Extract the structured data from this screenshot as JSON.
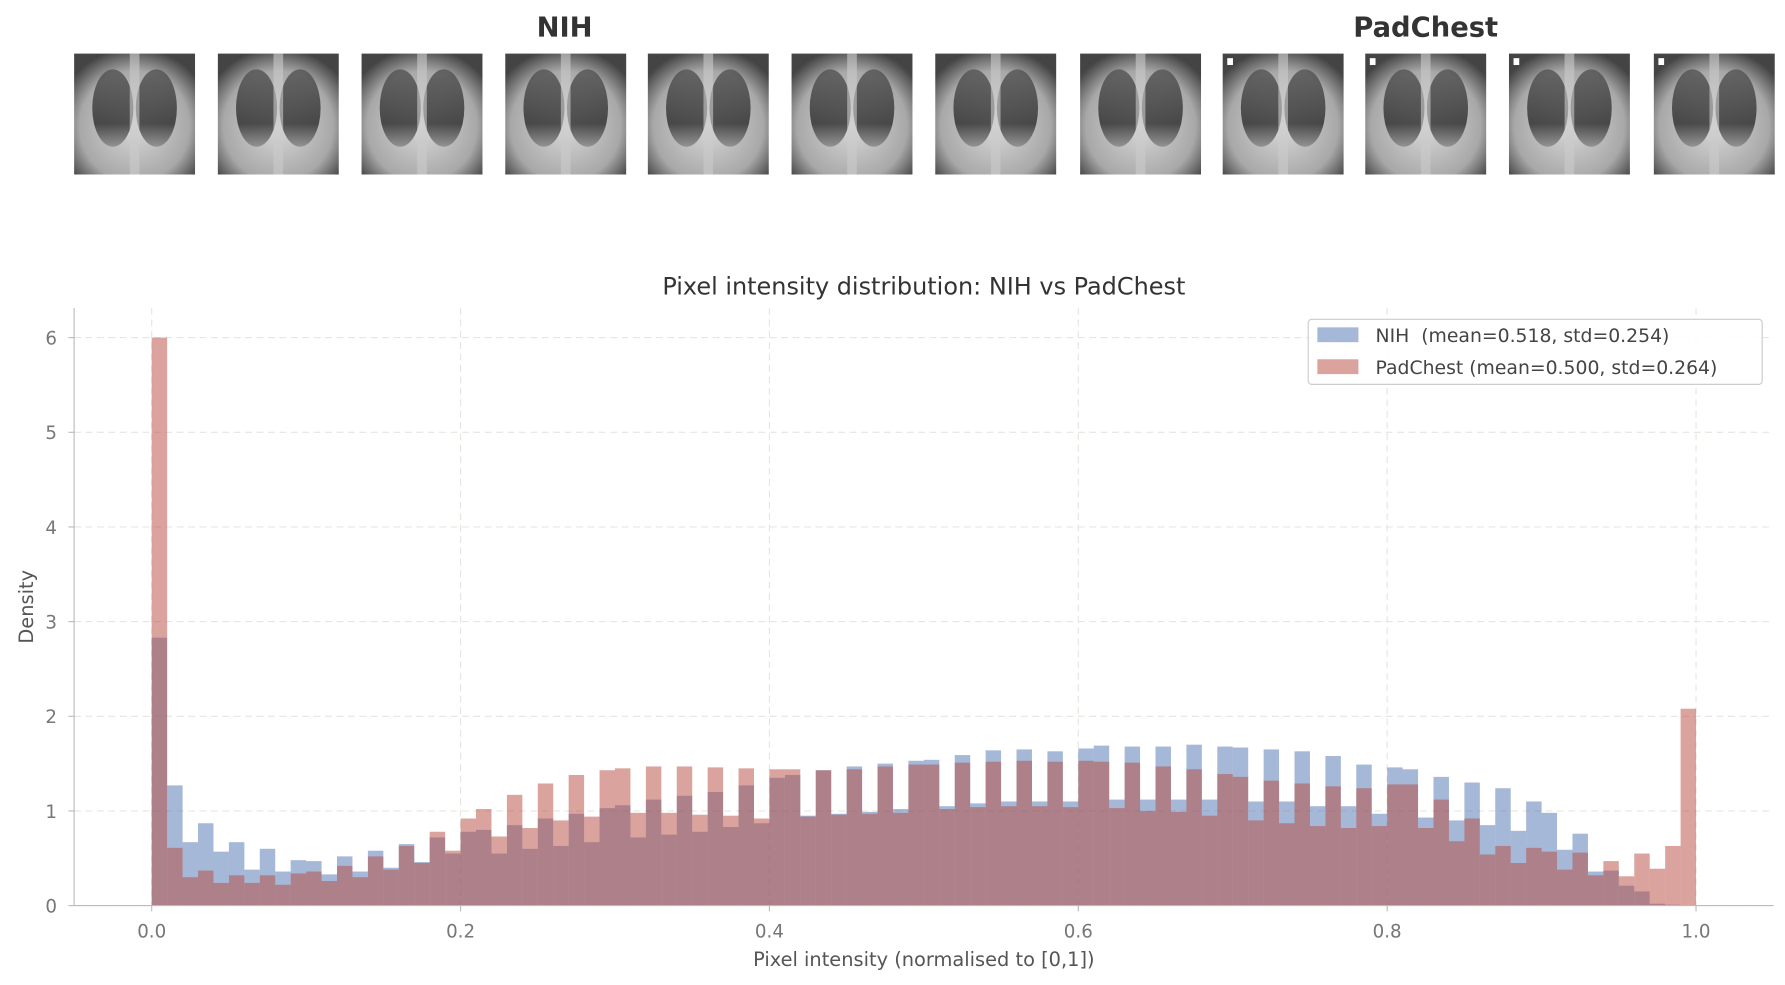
{
  "panels": {
    "left_title": "NIH",
    "right_title": "PadChest",
    "nih_thumbnails": 8,
    "padchest_thumbnails": 4
  },
  "chart_data": {
    "type": "histogram",
    "title": "Pixel intensity distribution: NIH vs PadChest",
    "xlabel": "Pixel intensity (normalised to [0,1])",
    "ylabel": "Density",
    "xlim": [
      -0.05,
      1.05
    ],
    "ylim": [
      0,
      6.3
    ],
    "xticks": [
      "0.0",
      "0.2",
      "0.4",
      "0.6",
      "0.8",
      "1.0"
    ],
    "yticks": [
      "0",
      "1",
      "2",
      "3",
      "4",
      "5",
      "6"
    ],
    "grid": true,
    "legend_position": "top-right",
    "bin_start": 0.0,
    "bin_width": 0.01,
    "series": [
      {
        "name": "NIH  (mean=0.518, std=0.254)",
        "color": "#4c72b0",
        "values": [
          2.83,
          1.27,
          0.67,
          0.87,
          0.57,
          0.67,
          0.38,
          0.6,
          0.36,
          0.48,
          0.47,
          0.33,
          0.52,
          0.36,
          0.58,
          0.4,
          0.65,
          0.46,
          0.72,
          0.55,
          0.78,
          0.8,
          0.55,
          0.85,
          0.6,
          0.92,
          0.63,
          0.97,
          0.67,
          1.03,
          1.06,
          0.72,
          1.12,
          0.75,
          1.16,
          0.78,
          1.2,
          0.83,
          1.27,
          0.87,
          1.35,
          1.38,
          0.95,
          1.43,
          0.97,
          1.47,
          0.99,
          1.5,
          1.02,
          1.53,
          1.54,
          1.05,
          1.59,
          1.08,
          1.64,
          1.1,
          1.65,
          1.1,
          1.63,
          1.1,
          1.66,
          1.69,
          1.12,
          1.68,
          1.12,
          1.68,
          1.12,
          1.7,
          1.12,
          1.68,
          1.67,
          1.1,
          1.65,
          1.1,
          1.63,
          1.05,
          1.58,
          1.05,
          1.49,
          0.97,
          1.46,
          1.44,
          0.93,
          1.36,
          0.9,
          1.3,
          0.85,
          1.24,
          0.79,
          1.1,
          0.98,
          0.59,
          0.76,
          0.36,
          0.37,
          0.21,
          0.15,
          0.02,
          0.01,
          0.0
        ]
      },
      {
        "name": "PadChest (mean=0.500, std=0.264)",
        "color": "#b5483e",
        "values": [
          6.0,
          0.61,
          0.3,
          0.37,
          0.24,
          0.32,
          0.24,
          0.32,
          0.22,
          0.34,
          0.36,
          0.26,
          0.42,
          0.3,
          0.52,
          0.38,
          0.63,
          0.45,
          0.78,
          0.58,
          0.92,
          1.02,
          0.73,
          1.17,
          0.82,
          1.29,
          0.9,
          1.38,
          0.94,
          1.43,
          1.45,
          0.98,
          1.47,
          0.98,
          1.47,
          0.96,
          1.46,
          0.95,
          1.45,
          0.92,
          1.44,
          1.44,
          0.94,
          1.43,
          0.96,
          1.44,
          0.97,
          1.47,
          0.98,
          1.49,
          1.49,
          1.02,
          1.51,
          1.04,
          1.52,
          1.05,
          1.53,
          1.05,
          1.52,
          1.04,
          1.53,
          1.52,
          1.03,
          1.51,
          1.0,
          1.47,
          0.99,
          1.44,
          0.95,
          1.39,
          1.36,
          0.9,
          1.32,
          0.87,
          1.29,
          0.84,
          1.26,
          0.82,
          1.24,
          0.84,
          1.28,
          1.28,
          0.82,
          1.12,
          0.68,
          0.92,
          0.54,
          0.63,
          0.45,
          0.61,
          0.57,
          0.38,
          0.56,
          0.32,
          0.47,
          0.31,
          0.55,
          0.39,
          0.63,
          2.08
        ]
      }
    ]
  }
}
